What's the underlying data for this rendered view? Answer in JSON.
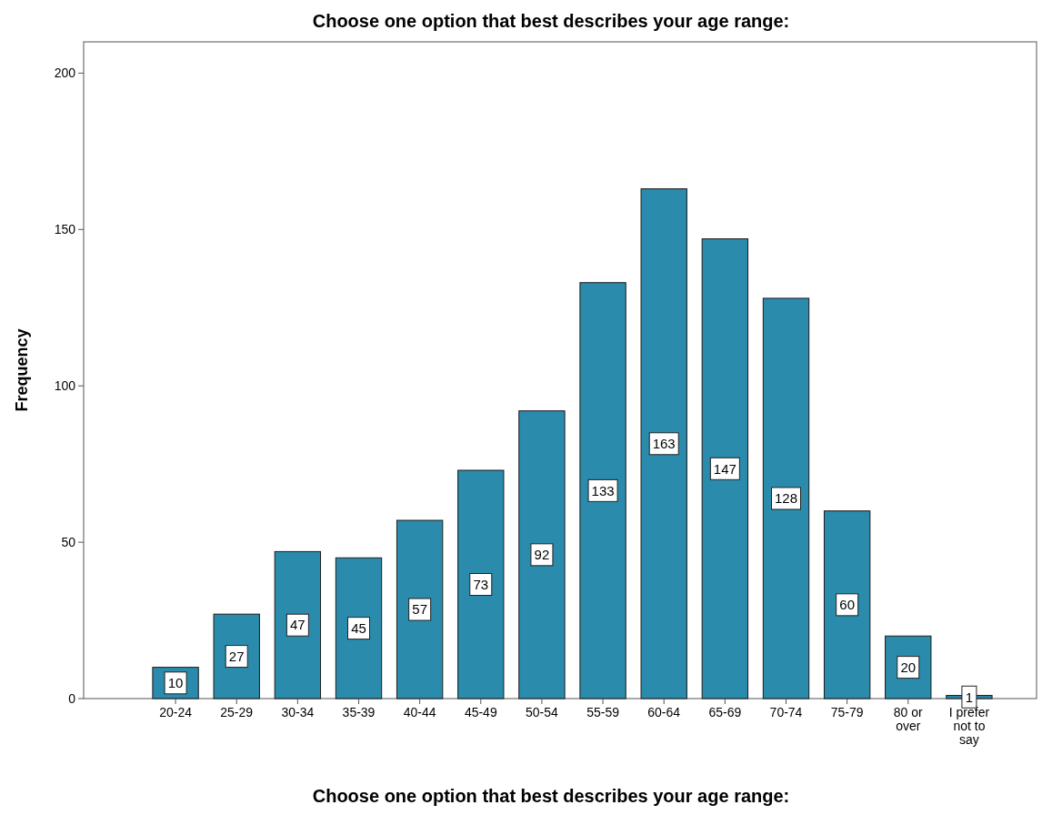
{
  "chart_data": {
    "type": "bar",
    "title": "Choose one option that best describes your age range:",
    "xlabel": "Choose one option that best describes your age range:",
    "ylabel": "Frequency",
    "categories": [
      "20-24",
      "25-29",
      "30-34",
      "35-39",
      "40-44",
      "45-49",
      "50-54",
      "55-59",
      "60-64",
      "65-69",
      "70-74",
      "75-79",
      "80 or over",
      "I prefer not to say"
    ],
    "values": [
      10,
      27,
      47,
      45,
      57,
      73,
      92,
      133,
      163,
      147,
      128,
      60,
      20,
      1
    ],
    "color": "#2a8bac",
    "ylim": [
      0,
      210
    ],
    "yticks": [
      0,
      50,
      100,
      150,
      200
    ],
    "grid": false,
    "data_labels": true
  }
}
